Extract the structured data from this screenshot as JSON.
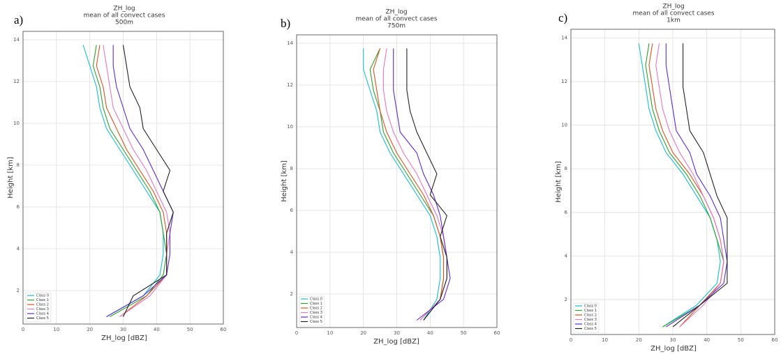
{
  "chart_data": [
    {
      "type": "line",
      "label": "a)",
      "title": "ZH_log",
      "subtitle": [
        "mean of all convect cases",
        "500m"
      ],
      "xlabel": "ZH_log [dBZ]",
      "ylabel": "Height [km]",
      "xlim": [
        0,
        60
      ],
      "xticks": [
        0,
        10,
        20,
        30,
        40,
        50,
        60
      ],
      "ylim": [
        0.4,
        14.4
      ],
      "yticks": [
        2,
        4,
        6,
        8,
        10,
        12,
        14
      ],
      "grid": true,
      "legend": "lower left",
      "y": [
        0.75,
        1.75,
        2.75,
        3.75,
        4.75,
        5.75,
        6.75,
        7.75,
        8.75,
        9.75,
        10.75,
        11.75,
        12.75,
        13.75
      ],
      "series": [
        {
          "name": "Class 0",
          "color": "#17becf",
          "values": [
            25,
            36,
            41,
            42,
            42,
            41,
            37,
            33,
            29,
            25,
            23,
            22,
            20,
            18
          ]
        },
        {
          "name": "Class 1",
          "color": "#2ca02c",
          "values": [
            26,
            37,
            42,
            43,
            42,
            41,
            38,
            34,
            30,
            26,
            24,
            23,
            21,
            22
          ]
        },
        {
          "name": "Class 2",
          "color": "#d9541e",
          "values": [
            29,
            37,
            43,
            43,
            43,
            42,
            39,
            35,
            31,
            28,
            25,
            24,
            22,
            23
          ]
        },
        {
          "name": "Class 3",
          "color": "#e377c2",
          "values": [
            29,
            38,
            43,
            43,
            44,
            43,
            40,
            37,
            33,
            30,
            27,
            26,
            25,
            24
          ]
        },
        {
          "name": "Class 4",
          "color": "#5b2bd6",
          "values": [
            25,
            36,
            43,
            44,
            44,
            45,
            42,
            39,
            36,
            32,
            30,
            28,
            27,
            27
          ]
        },
        {
          "name": "Class 5",
          "color": "#222222",
          "values": [
            30,
            33,
            43,
            43,
            43,
            45,
            42,
            44,
            40,
            36,
            35,
            32,
            31,
            30
          ]
        }
      ]
    },
    {
      "type": "line",
      "label": "b)",
      "title": "ZH_log",
      "subtitle": [
        "mean of all convect cases",
        "750m"
      ],
      "xlabel": "ZH_log [dBZ]",
      "ylabel": "Height [km]",
      "xlim": [
        0,
        60
      ],
      "xticks": [
        0,
        10,
        20,
        30,
        40,
        50,
        60
      ],
      "ylim": [
        0.4,
        14.4
      ],
      "yticks": [
        2,
        4,
        6,
        8,
        10,
        12,
        14
      ],
      "grid": true,
      "legend": "lower left",
      "y": [
        0.75,
        1.75,
        2.75,
        3.75,
        4.75,
        5.75,
        6.75,
        7.75,
        8.75,
        9.75,
        10.75,
        11.75,
        12.75,
        13.75
      ],
      "series": [
        {
          "name": "Class 0",
          "color": "#17becf",
          "values": [
            38,
            42,
            43,
            43,
            42,
            40,
            36,
            32,
            28,
            25,
            24,
            22,
            20,
            20
          ]
        },
        {
          "name": "Class 1",
          "color": "#2ca02c",
          "values": [
            38,
            43,
            44,
            44,
            43,
            41,
            37,
            33,
            29,
            26,
            25,
            23,
            22,
            25
          ]
        },
        {
          "name": "Class 2",
          "color": "#d9541e",
          "values": [
            37,
            43,
            44,
            44,
            43,
            41,
            38,
            34,
            30,
            27,
            25,
            24,
            23,
            25
          ]
        },
        {
          "name": "Class 3",
          "color": "#e377c2",
          "values": [
            37,
            43,
            45,
            45,
            44,
            42,
            39,
            36,
            32,
            29,
            27,
            26,
            26,
            27
          ]
        },
        {
          "name": "Class 4",
          "color": "#5b2bd6",
          "values": [
            36,
            44,
            46,
            45,
            44,
            43,
            41,
            38,
            36,
            31,
            30,
            29,
            29,
            29
          ]
        },
        {
          "name": "Class 5",
          "color": "#222222",
          "values": [
            38,
            43,
            45,
            45,
            43,
            45,
            40,
            42,
            39,
            36,
            34,
            33,
            33,
            33
          ]
        }
      ]
    },
    {
      "type": "line",
      "label": "c)",
      "title": "ZH_log",
      "subtitle": [
        "mean of all convect cases",
        "1km"
      ],
      "xlabel": "ZH_log [dBZ]",
      "ylabel": "Height [km]",
      "xlim": [
        0,
        60
      ],
      "xticks": [
        0,
        10,
        20,
        30,
        40,
        50,
        60
      ],
      "ylim": [
        0.4,
        14.4
      ],
      "yticks": [
        2,
        4,
        6,
        8,
        10,
        12,
        14
      ],
      "grid": true,
      "legend": "lower left",
      "y": [
        0.75,
        1.75,
        2.75,
        3.75,
        4.75,
        5.75,
        6.75,
        7.75,
        8.75,
        9.75,
        10.75,
        11.75,
        12.75,
        13.75
      ],
      "series": [
        {
          "name": "Class 0",
          "color": "#17becf",
          "values": [
            27,
            37,
            43,
            44,
            43,
            41,
            37,
            33,
            28,
            25,
            23,
            22,
            21,
            20
          ]
        },
        {
          "name": "Class 1",
          "color": "#2ca02c",
          "values": [
            27,
            38,
            44,
            45,
            43,
            41,
            38,
            34,
            29,
            26,
            24,
            23,
            22,
            23
          ]
        },
        {
          "name": "Class 2",
          "color": "#d9541e",
          "values": [
            32,
            38,
            44,
            45,
            44,
            42,
            39,
            35,
            30,
            27,
            25,
            24,
            23,
            24
          ]
        },
        {
          "name": "Class 3",
          "color": "#e377c2",
          "values": [
            32,
            39,
            44,
            45,
            44,
            42,
            39,
            36,
            32,
            29,
            27,
            26,
            25,
            26
          ]
        },
        {
          "name": "Class 4",
          "color": "#5b2bd6",
          "values": [
            28,
            38,
            45,
            46,
            45,
            44,
            41,
            37,
            35,
            31,
            30,
            29,
            28,
            28
          ]
        },
        {
          "name": "Class 5",
          "color": "#222222",
          "values": [
            30,
            38,
            46,
            46,
            46,
            46,
            43,
            41,
            39,
            35,
            34,
            33,
            33,
            33
          ]
        }
      ]
    }
  ]
}
